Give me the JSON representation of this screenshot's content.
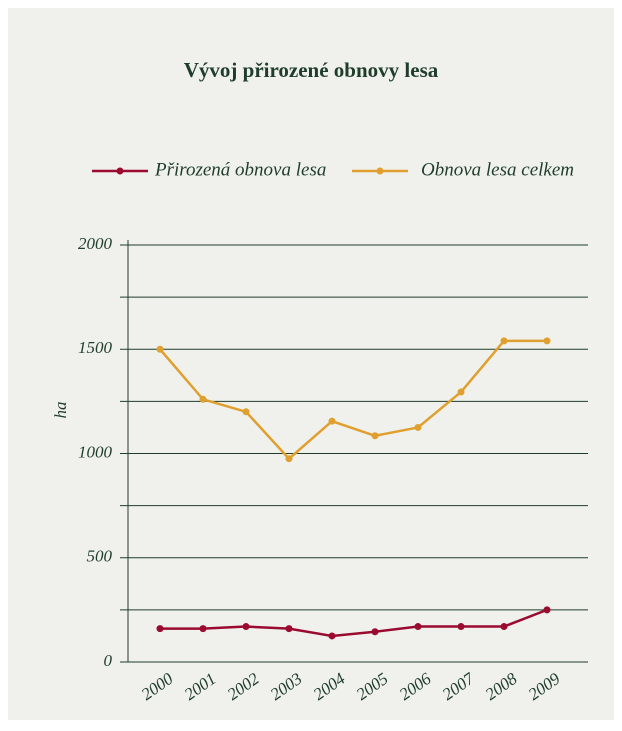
{
  "chart_data": {
    "type": "line",
    "title": "Vývoj přirozené obnovy lesa",
    "y_label": "ha",
    "categories": [
      "2000",
      "2001",
      "2002",
      "2003",
      "2004",
      "2005",
      "2006",
      "2007",
      "2008",
      "2009"
    ],
    "series": [
      {
        "name": "Přirozená obnova lesa",
        "color": "#9b0a2f",
        "values": [
          160,
          160,
          170,
          160,
          125,
          145,
          170,
          170,
          170,
          250
        ]
      },
      {
        "name": "Obnova lesa celkem",
        "color": "#e0a030",
        "values": [
          1500,
          1260,
          1200,
          975,
          1155,
          1085,
          1125,
          1295,
          1540,
          1540
        ]
      }
    ],
    "ylim": [
      0,
      2000
    ],
    "yticks": [
      0,
      500,
      1000,
      1500,
      2000
    ],
    "yminor_ticks": [
      250,
      750,
      1250,
      1750
    ],
    "grid": true,
    "legend": "top"
  }
}
